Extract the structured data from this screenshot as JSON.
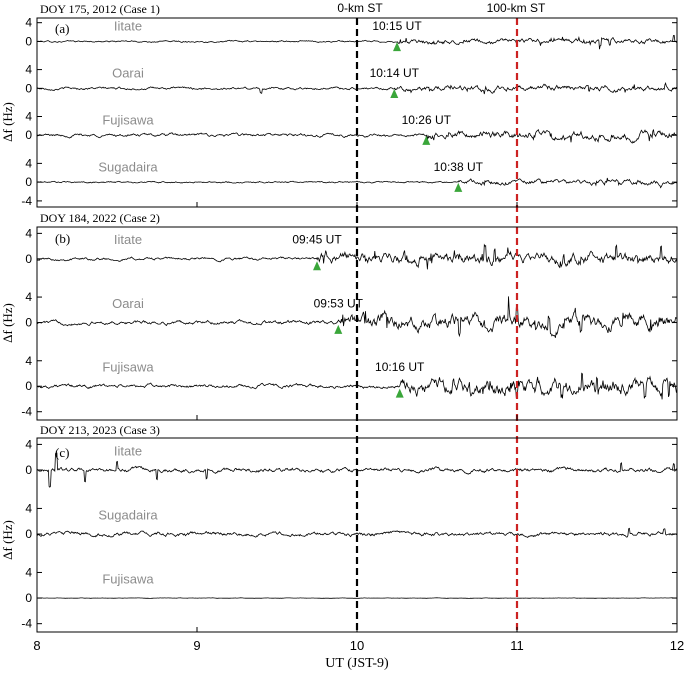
{
  "figure": {
    "xlabel": "UT (JST-9)",
    "ylabel": "Δf (Hz)",
    "xlim": [
      8,
      12
    ],
    "xticks": [
      "8",
      "9",
      "10",
      "11",
      "12"
    ],
    "vlines": [
      {
        "x": 10.0,
        "label": "0-km ST",
        "color": "#000000"
      },
      {
        "x": 11.0,
        "label": "100-km ST",
        "color": "#cc2222"
      }
    ],
    "station_label_color": "#8c8c8c",
    "marker_color": "#3aa63a",
    "trace_color": "#000000"
  },
  "chart_data": [
    {
      "type": "line",
      "panel": "(a)",
      "title": "DOY 175, 2012 (Case 1)",
      "yticks": [
        "4",
        "0",
        "4",
        "0",
        "4",
        "0",
        "4",
        "0",
        "-4"
      ],
      "series": [
        {
          "name": "Iitate",
          "offset": 0,
          "noise": 0.12,
          "onset": 10.25,
          "onset_label": "10:15 UT",
          "after_noise": 0.35,
          "spikes": [
            [
              11.52,
              -1.4
            ],
            [
              11.58,
              -1.2
            ],
            [
              11.98,
              1.3
            ]
          ]
        },
        {
          "name": "Oarai",
          "offset": -10,
          "noise": 0.18,
          "onset": 10.233,
          "onset_label": "10:14 UT",
          "after_noise": 0.4,
          "spikes": [
            [
              9.4,
              -0.8
            ],
            [
              11.45,
              -1.1
            ]
          ]
        },
        {
          "name": "Fujisawa",
          "offset": -20,
          "noise": 0.22,
          "onset": 10.433,
          "onset_label": "10:26 UT",
          "after_noise": 0.6,
          "spikes": [
            [
              11.85,
              1.0
            ]
          ]
        },
        {
          "name": "Sugadaira",
          "offset": -30,
          "noise": 0.12,
          "onset": 10.633,
          "onset_label": "10:38 UT",
          "after_noise": 0.35,
          "spikes": []
        }
      ]
    },
    {
      "type": "line",
      "panel": "(b)",
      "title": "DOY 184, 2022 (Case 2)",
      "yticks": [
        "4",
        "0",
        "4",
        "0",
        "4",
        "0",
        "-4"
      ],
      "series": [
        {
          "name": "Iitate",
          "offset": 0,
          "noise": 0.15,
          "onset": 9.75,
          "onset_label": "09:45 UT",
          "after_noise": 0.6,
          "spikes": [
            [
              10.8,
              2.3
            ],
            [
              10.86,
              2.0
            ],
            [
              11.62,
              2.0
            ],
            [
              11.9,
              1.5
            ]
          ]
        },
        {
          "name": "Oarai",
          "offset": -10,
          "noise": 0.2,
          "onset": 9.883,
          "onset_label": "09:53 UT",
          "after_noise": 0.8,
          "spikes": [
            [
              10.64,
              -2.0
            ],
            [
              10.95,
              2.0
            ],
            [
              11.0,
              2.5
            ],
            [
              11.2,
              2.2
            ],
            [
              11.4,
              -1.5
            ]
          ]
        },
        {
          "name": "Fujisawa",
          "offset": -20,
          "noise": 0.2,
          "onset": 10.267,
          "onset_label": "10:16 UT",
          "after_noise": 0.9,
          "spikes": [
            [
              10.6,
              1.5
            ],
            [
              11.0,
              -1.2
            ],
            [
              11.28,
              -2.0
            ],
            [
              11.5,
              2.2
            ],
            [
              11.8,
              -1.5
            ],
            [
              11.95,
              -2.0
            ]
          ]
        }
      ]
    },
    {
      "type": "line",
      "panel": "(c)",
      "title": "DOY 213, 2023 (Case 3)",
      "yticks": [
        "4",
        "0",
        "4",
        "0",
        "4",
        "0",
        "-4"
      ],
      "series": [
        {
          "name": "Iitate",
          "offset": 0,
          "noise": 0.22,
          "onset": null,
          "onset_label": "",
          "after_noise": 0.22,
          "spikes": [
            [
              8.08,
              -2.5
            ],
            [
              8.12,
              2.8
            ],
            [
              8.3,
              -1.6
            ],
            [
              8.5,
              1.2
            ],
            [
              8.75,
              -1.5
            ],
            [
              9.06,
              -1.3
            ],
            [
              11.65,
              1.2
            ],
            [
              11.98,
              0.9
            ]
          ]
        },
        {
          "name": "Sugadaira",
          "offset": -10,
          "noise": 0.22,
          "onset": null,
          "onset_label": "",
          "after_noise": 0.22,
          "spikes": [
            [
              11.7,
              0.9
            ],
            [
              11.92,
              0.8
            ]
          ]
        },
        {
          "name": "Fujisawa",
          "offset": -20,
          "noise": 0.02,
          "onset": null,
          "onset_label": "",
          "after_noise": 0.02,
          "spikes": []
        }
      ]
    }
  ]
}
